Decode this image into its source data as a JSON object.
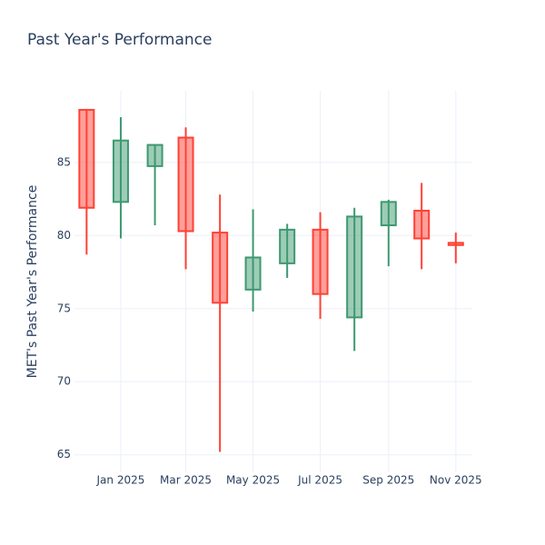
{
  "chart_data": {
    "type": "candlestick",
    "title": "Past Year's Performance",
    "y_label": "MET's Past Year's Performance",
    "x": [
      "2024-12",
      "2025-01",
      "2025-02",
      "2025-03",
      "2025-04",
      "2025-05",
      "2025-06",
      "2025-07",
      "2025-08",
      "2025-09",
      "2025-10",
      "2025-11"
    ],
    "open": [
      88.6,
      82.3,
      84.75,
      86.7,
      80.2,
      76.3,
      78.1,
      80.4,
      74.4,
      80.7,
      81.7,
      79.5
    ],
    "high": [
      88.6,
      88.1,
      86.2,
      87.4,
      82.8,
      81.8,
      80.8,
      81.6,
      81.9,
      82.45,
      83.6,
      80.2
    ],
    "low": [
      78.7,
      79.8,
      80.7,
      77.7,
      65.2,
      74.8,
      77.1,
      74.3,
      72.1,
      77.9,
      77.7,
      78.1
    ],
    "close": [
      81.9,
      86.5,
      86.2,
      80.3,
      75.4,
      78.5,
      80.4,
      76.0,
      81.3,
      82.3,
      79.8,
      79.35
    ],
    "increasing_color": "#3d9970",
    "decreasing_color": "#ff4136",
    "xlim": [
      "2024-11-20",
      "2025-11-16"
    ],
    "xticks": [
      {
        "value": "2025-01",
        "label": "Jan 2025"
      },
      {
        "value": "2025-03",
        "label": "Mar 2025"
      },
      {
        "value": "2025-05",
        "label": "May 2025"
      },
      {
        "value": "2025-07",
        "label": "Jul 2025"
      },
      {
        "value": "2025-09",
        "label": "Sep 2025"
      },
      {
        "value": "2025-11",
        "label": "Nov 2025"
      }
    ],
    "ylim": [
      63.8,
      89.9
    ],
    "yticks": [
      65,
      70,
      75,
      80,
      85
    ],
    "grid": true
  }
}
